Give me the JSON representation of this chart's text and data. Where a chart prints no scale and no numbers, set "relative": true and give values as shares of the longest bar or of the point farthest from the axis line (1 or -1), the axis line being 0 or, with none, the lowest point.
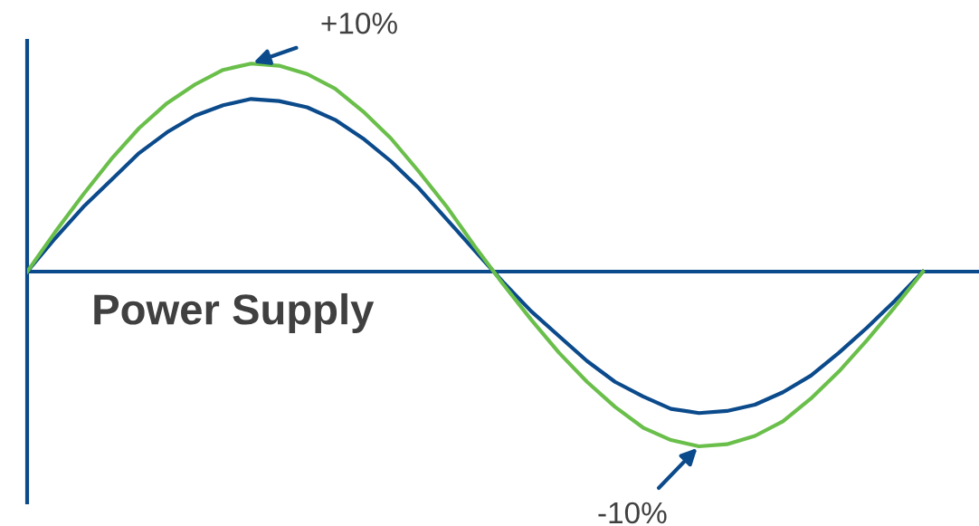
{
  "chart_data": {
    "type": "line",
    "relative": true,
    "title": "Power Supply",
    "categories": [
      null,
      null,
      null,
      null,
      null,
      null,
      null,
      null,
      null,
      null,
      null,
      null,
      null,
      null,
      null,
      null,
      null,
      null,
      null,
      null,
      null,
      null,
      null,
      null,
      null,
      null,
      null,
      null,
      null,
      null,
      null,
      null,
      null
    ],
    "series": [
      {
        "color": "#0b4a8b",
        "values": [
          0,
          0.16,
          0.31,
          0.44,
          0.57,
          0.67,
          0.75,
          0.8,
          0.83,
          0.82,
          0.79,
          0.73,
          0.64,
          0.53,
          0.4,
          0.25,
          0.1,
          -0.05,
          -0.19,
          -0.31,
          -0.43,
          -0.53,
          -0.6,
          -0.66,
          -0.68,
          -0.67,
          -0.64,
          -0.58,
          -0.5,
          -0.39,
          -0.27,
          -0.14,
          0
        ]
      },
      {
        "color": "#6abf4b",
        "values": [
          0,
          0.19,
          0.37,
          0.54,
          0.69,
          0.81,
          0.9,
          0.97,
          1,
          0.99,
          0.95,
          0.88,
          0.77,
          0.64,
          0.48,
          0.31,
          0.12,
          -0.06,
          -0.23,
          -0.39,
          -0.53,
          -0.65,
          -0.75,
          -0.81,
          -0.84,
          -0.83,
          -0.79,
          -0.72,
          -0.61,
          -0.48,
          -0.33,
          -0.17,
          0
        ]
      }
    ],
    "annotations": [
      "+10%",
      "-10%"
    ],
    "ref_lines": [
      {
        "axis": "y",
        "value": 0,
        "color": "#0b4a8b",
        "line_style": "solid"
      }
    ],
    "legend": false,
    "marker": "none",
    "line_style": "solid"
  }
}
